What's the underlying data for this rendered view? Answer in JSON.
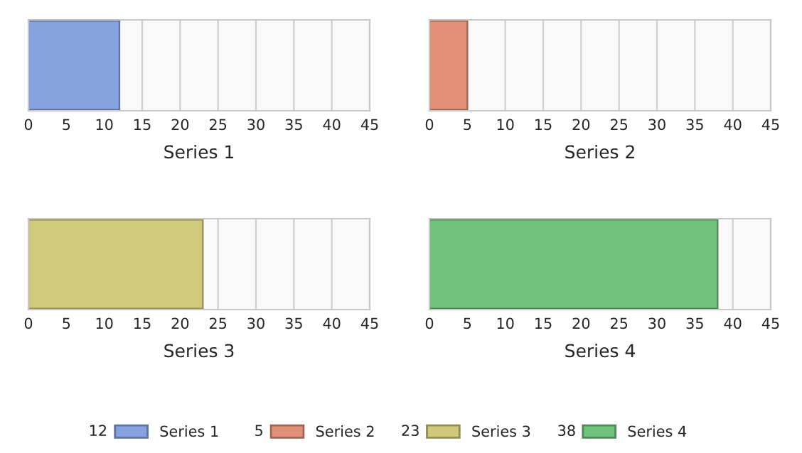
{
  "chart_data": [
    {
      "type": "bar",
      "orientation": "horizontal",
      "categories": [
        null
      ],
      "series": [
        {
          "name": "Series 1",
          "color": "#86a3e0",
          "values": [
            12
          ]
        }
      ],
      "xlim": [
        0,
        45
      ],
      "xticks": [
        0,
        5,
        10,
        15,
        20,
        25,
        30,
        35,
        40,
        45
      ],
      "xlabel": "Series 1",
      "grid": "x",
      "tick_labels": "x",
      "legend": "bottom",
      "annotations": [
        "12"
      ]
    },
    {
      "type": "bar",
      "orientation": "horizontal",
      "categories": [
        null
      ],
      "series": [
        {
          "name": "Series 2",
          "color": "#e39078",
          "values": [
            5
          ]
        }
      ],
      "xlim": [
        0,
        45
      ],
      "xticks": [
        0,
        5,
        10,
        15,
        20,
        25,
        30,
        35,
        40,
        45
      ],
      "xlabel": "Series 2",
      "grid": "x",
      "tick_labels": "x",
      "legend": "bottom",
      "annotations": [
        "5"
      ]
    },
    {
      "type": "bar",
      "orientation": "horizontal",
      "categories": [
        null
      ],
      "series": [
        {
          "name": "Series 3",
          "color": "#cfca7a",
          "values": [
            23
          ]
        }
      ],
      "xlim": [
        0,
        45
      ],
      "xticks": [
        0,
        5,
        10,
        15,
        20,
        25,
        30,
        35,
        40,
        45
      ],
      "xlabel": "Series 3",
      "grid": "x",
      "tick_labels": "x",
      "legend": "bottom",
      "annotations": [
        "23"
      ]
    },
    {
      "type": "bar",
      "orientation": "horizontal",
      "categories": [
        null
      ],
      "series": [
        {
          "name": "Series 4",
          "color": "#70c27c",
          "values": [
            38
          ]
        }
      ],
      "xlim": [
        0,
        45
      ],
      "xticks": [
        0,
        5,
        10,
        15,
        20,
        25,
        30,
        35,
        40,
        45
      ],
      "xlabel": "Series 4",
      "grid": "x",
      "tick_labels": "x",
      "legend": "bottom",
      "annotations": [
        "38"
      ]
    }
  ]
}
